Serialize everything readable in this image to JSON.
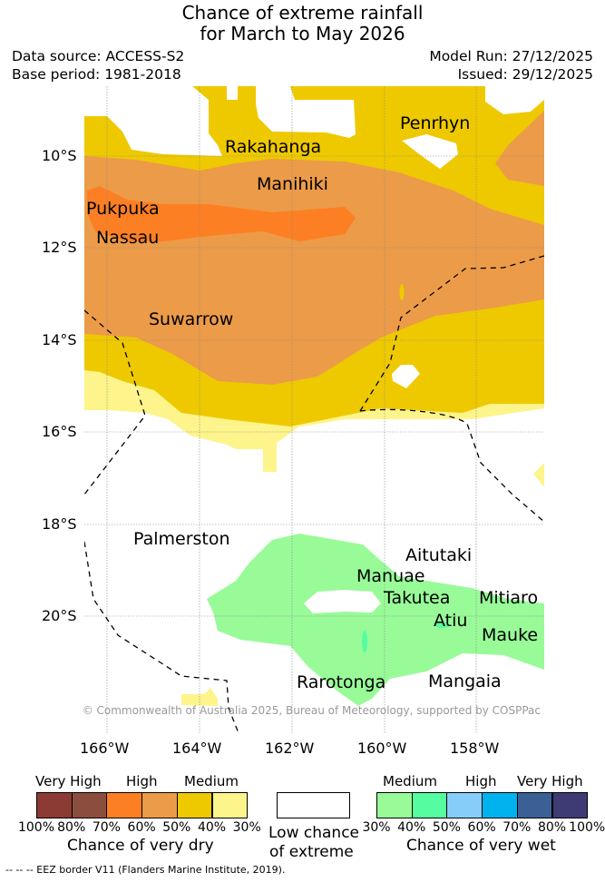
{
  "title_line1": "Chance of extreme rainfall",
  "title_line2": "for March to May 2026",
  "data_source": "Data source: ACCESS-S2",
  "base_period": "Base period: 1981-2018",
  "model_run": "Model Run: 27/12/2025",
  "issued": "Issued: 29/12/2025",
  "lat_ticks": [
    "10°S",
    "12°S",
    "14°S",
    "16°S",
    "18°S",
    "20°S"
  ],
  "lon_ticks": [
    "166°W",
    "164°W",
    "162°W",
    "160°W",
    "158°W"
  ],
  "islands": [
    "Penrhyn",
    "Rakahanga",
    "Manihiki",
    "Pukpuka",
    "Nassau",
    "Suwarrow",
    "Palmerston",
    "Aitutaki",
    "Manuae",
    "Takutea",
    "Mitiaro",
    "Atiu",
    "Mauke",
    "Rarotonga",
    "Mangaia"
  ],
  "copyright": "© Commonwealth of Australia 2025, Bureau of Meteorology, supported by COSPPac",
  "legend": {
    "dry_levels": [
      "Very High",
      "High",
      "Medium"
    ],
    "dry_colors": [
      "#8b3a34",
      "#8b4e3e",
      "#fd7f23",
      "#ec9b48",
      "#eec900",
      "#fdf48c"
    ],
    "dry_ticks": [
      "100%",
      "80%",
      "70%",
      "60%",
      "50%",
      "40%",
      "30%"
    ],
    "dry_label": "Chance of very dry",
    "low_label_1": "Low chance",
    "low_label_2": "of extreme",
    "wet_levels": [
      "Medium",
      "High",
      "Very High"
    ],
    "wet_colors": [
      "#98fb98",
      "#55fca0",
      "#87cdfa",
      "#00b2ee",
      "#3a6096",
      "#3e3b74"
    ],
    "wet_ticks": [
      "30%",
      "40%",
      "50%",
      "60%",
      "70%",
      "80%",
      "100%"
    ],
    "wet_label": "Chance of very wet"
  },
  "eez_note": "--  --  -- EEZ border V11 (Flanders Marine Institute, 2019)."
}
